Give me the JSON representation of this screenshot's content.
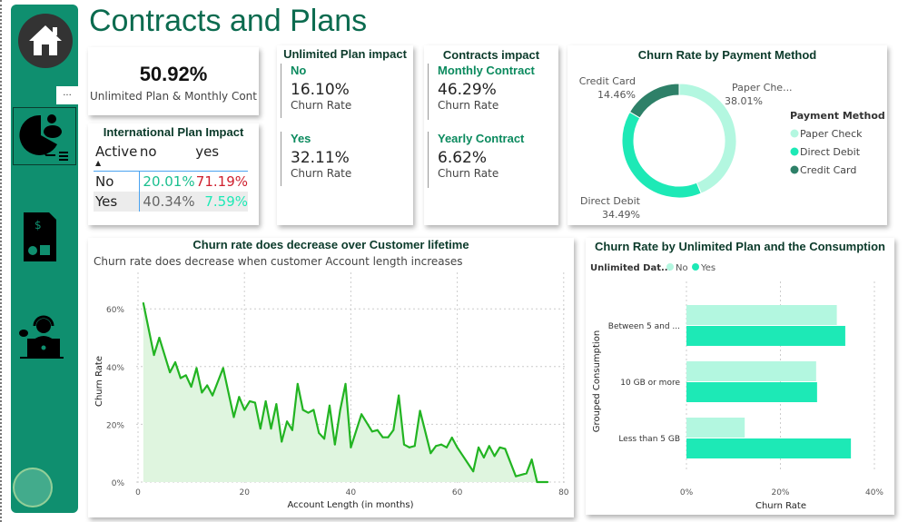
{
  "page_title": "Contracts and Plans",
  "sidebar": {
    "more_label": "...",
    "items": [
      {
        "name": "home",
        "icon": "home-icon"
      },
      {
        "name": "contracts-and-plans",
        "icon": "pie-user-icon"
      },
      {
        "name": "billing",
        "icon": "invoice-dollar-icon"
      },
      {
        "name": "customer-service",
        "icon": "headset-agent-icon"
      }
    ]
  },
  "kpi": {
    "value": "50.92%",
    "label": "Unlimited Plan & Monthly Cont"
  },
  "intl_table": {
    "title": "International Plan Impact",
    "corner": "Active",
    "columns": [
      "no",
      "yes"
    ],
    "rows": [
      {
        "label": "No",
        "values": [
          "20.01%",
          "71.19%"
        ]
      },
      {
        "label": "Yes",
        "values": [
          "40.34%",
          "7.59%"
        ]
      }
    ],
    "colors": {
      "low": "#1abf8f",
      "high": "#d0202e",
      "mid": "#666666"
    }
  },
  "unlimited": {
    "title": "Unlimited Plan impact",
    "items": [
      {
        "label": "No",
        "value": "16.10%",
        "caption": "Churn Rate"
      },
      {
        "label": "Yes",
        "value": "32.11%",
        "caption": "Churn Rate"
      }
    ]
  },
  "contracts": {
    "title": "Contracts impact",
    "items": [
      {
        "label": "Monthly Contract",
        "value": "46.29%",
        "caption": "Churn Rate"
      },
      {
        "label": "Yearly Contract",
        "value": "6.62%",
        "caption": "Churn Rate"
      }
    ]
  },
  "chart_data": [
    {
      "type": "pie",
      "title": "Churn Rate by Payment Method",
      "legend_title": "Payment Method",
      "legend_position": "right",
      "slices": [
        {
          "name": "Paper Check",
          "label": "Paper Che...",
          "value": 38.01,
          "display": "38.01%",
          "color": "#b3f7e0"
        },
        {
          "name": "Direct Debit",
          "label": "Direct Debit",
          "value": 34.49,
          "display": "34.49%",
          "color": "#1de9b6"
        },
        {
          "name": "Credit Card",
          "label": "Credit Card",
          "value": 14.46,
          "display": "14.46%",
          "color": "#2e8068"
        }
      ]
    },
    {
      "type": "area",
      "title": "Churn rate does decrease over Customer lifetime",
      "subtitle": "Churn rate does decrease when customer Account length increases",
      "xlabel": "Account Length (in months)",
      "ylabel": "Churn Rate",
      "xlim": [
        0,
        80
      ],
      "ylim": [
        0,
        60
      ],
      "xticks": [
        "0",
        "20",
        "40",
        "60",
        "80"
      ],
      "yticks": [
        "0%",
        "20%",
        "40%",
        "60%"
      ],
      "grid": true,
      "color": "#22b422",
      "x": [
        1,
        3,
        4,
        6,
        7,
        8,
        9,
        10,
        11,
        12,
        13,
        14,
        16,
        18,
        19,
        20,
        21,
        22,
        23,
        24,
        25,
        26,
        27,
        28,
        29,
        30,
        31,
        32,
        33,
        34,
        35,
        36,
        37,
        38,
        39,
        40,
        42,
        44,
        45,
        46,
        47,
        48,
        49,
        50,
        51,
        52,
        53,
        55,
        56,
        57,
        58,
        59,
        60,
        63,
        64,
        65,
        66,
        67,
        68,
        69,
        71,
        73,
        74,
        75,
        77
      ],
      "y": [
        62,
        44,
        50,
        38,
        41.5,
        36,
        37,
        33,
        39.5,
        31,
        33.5,
        30,
        39.5,
        22.5,
        29.5,
        25,
        28,
        27.5,
        18.5,
        28,
        18.5,
        27,
        14,
        21,
        18,
        34,
        25,
        24,
        25,
        17,
        15,
        26.5,
        13,
        25,
        34,
        12,
        23.5,
        17.5,
        18,
        15.5,
        15.5,
        18,
        30,
        13,
        12,
        12.5,
        24.7,
        10,
        12.5,
        13,
        12,
        15.4,
        12,
        3.7,
        12,
        8.5,
        12.5,
        9,
        12,
        11.5,
        2,
        3,
        7.8,
        0,
        0
      ]
    },
    {
      "type": "bar",
      "orientation": "horizontal",
      "title": "Churn Rate by Unlimited Plan and the Consumption",
      "legend_title": "Unlimited Dat...",
      "legend_position": "top-left",
      "xlabel": "Churn Rate",
      "ylabel": "Grouped Consumption",
      "xlim": [
        0,
        40
      ],
      "xticks": [
        "0%",
        "20%",
        "40%"
      ],
      "categories": [
        "Between 5 and ...",
        "10 GB or more",
        "Less than 5 GB"
      ],
      "series": [
        {
          "name": "No",
          "color": "#b3f7e0",
          "values": [
            32,
            27.6,
            12.4
          ]
        },
        {
          "name": "Yes",
          "color": "#1de9b6",
          "values": [
            33.8,
            27.8,
            35
          ]
        }
      ]
    }
  ]
}
